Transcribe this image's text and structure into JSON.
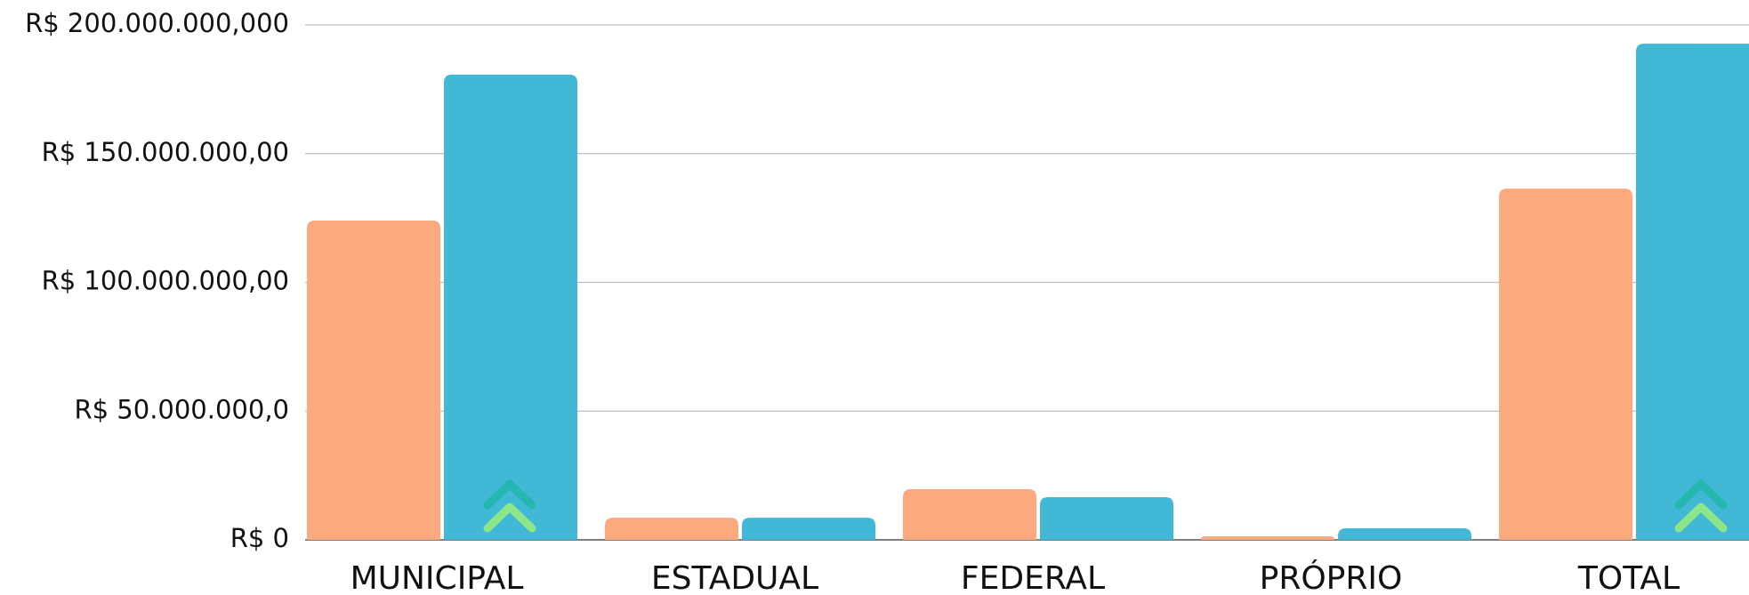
{
  "chart_data": {
    "type": "bar",
    "categories": [
      "MUNICIPAL",
      "ESTADUAL",
      "FEDERAL",
      "PRÓPRIO",
      "TOTAL"
    ],
    "series": [
      {
        "color": "#fda97f",
        "values": [
          124000000,
          8600000,
          19700000,
          1400000,
          136400000
        ]
      },
      {
        "color": "#41b8d5",
        "values": [
          180700000,
          8600000,
          16600000,
          4500000,
          192700000
        ]
      }
    ],
    "ylim": [
      0,
      200000000
    ],
    "yticks": [
      {
        "value": 0,
        "label": "R$ 0"
      },
      {
        "value": 50000000,
        "label": "R$ 50.000.000,0"
      },
      {
        "value": 100000000,
        "label": "R$ 100.000.000,00"
      },
      {
        "value": 150000000,
        "label": "R$ 150.000.000,00"
      },
      {
        "value": 200000000,
        "label": "R$ 200.000.000,000"
      }
    ],
    "grid": true
  }
}
